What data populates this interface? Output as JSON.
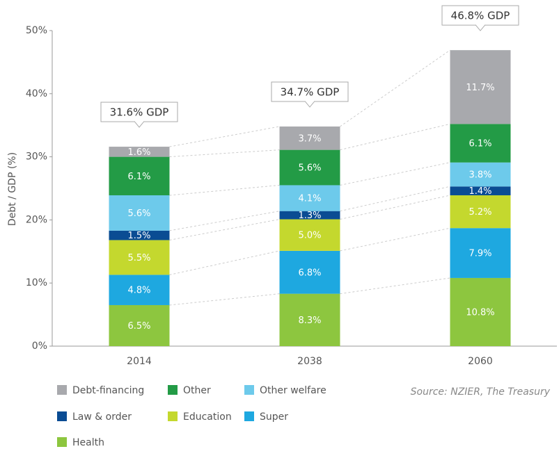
{
  "chart_data": {
    "type": "stacked_bar",
    "ylabel": "Debt / GDP (%)",
    "categories": [
      "2014",
      "2038",
      "2060"
    ],
    "series": [
      {
        "name": "Health",
        "color": "#8dc63f",
        "values": [
          6.5,
          8.3,
          10.8
        ],
        "value_labels": [
          "6.5%",
          "8.3%",
          "10.8%"
        ]
      },
      {
        "name": "Super",
        "color": "#1ea8e0",
        "values": [
          4.8,
          6.8,
          7.9
        ],
        "value_labels": [
          "4.8%",
          "6.8%",
          "7.9%"
        ]
      },
      {
        "name": "Education",
        "color": "#c4d82e",
        "values": [
          5.5,
          5.0,
          5.2
        ],
        "value_labels": [
          "5.5%",
          "5.0%",
          "5.2%"
        ]
      },
      {
        "name": "Law & order",
        "color": "#0a4c93",
        "values": [
          1.5,
          1.3,
          1.4
        ],
        "value_labels": [
          "1.5%",
          "1.3%",
          "1.4%"
        ]
      },
      {
        "name": "Other welfare",
        "color": "#6dcaeb",
        "values": [
          5.6,
          4.1,
          3.8
        ],
        "value_labels": [
          "5.6%",
          "4.1%",
          "3.8%"
        ]
      },
      {
        "name": "Other",
        "color": "#239b46",
        "values": [
          6.1,
          5.6,
          6.1
        ],
        "value_labels": [
          "6.1%",
          "5.6%",
          "6.1%"
        ]
      },
      {
        "name": "Debt-financing",
        "color": "#a8a9ad",
        "values": [
          1.6,
          3.7,
          11.7
        ],
        "value_labels": [
          "1.6%",
          "3.7%",
          "11.7%"
        ]
      }
    ],
    "annotations": [
      "31.6% GDP",
      "34.7% GDP",
      "46.8% GDP"
    ],
    "source": "Source: NZIER, The Treasury",
    "ylim": [
      0,
      50
    ],
    "yticks": [
      {
        "value": 0,
        "label": "0%"
      },
      {
        "value": 10,
        "label": "10%"
      },
      {
        "value": 20,
        "label": "20%"
      },
      {
        "value": 30,
        "label": "30%"
      },
      {
        "value": 40,
        "label": "40%"
      },
      {
        "value": 50,
        "label": "50%"
      }
    ]
  }
}
